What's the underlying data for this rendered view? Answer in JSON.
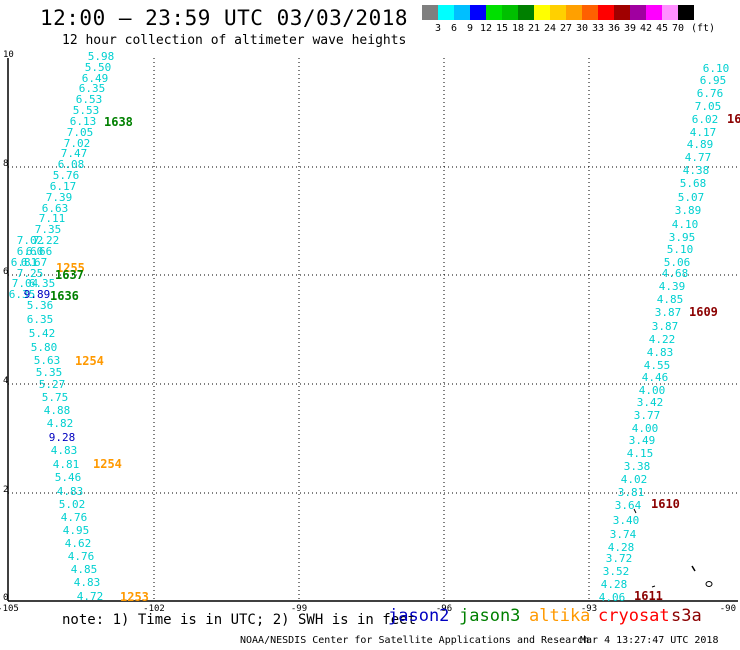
{
  "header": {
    "title": "12:00 – 23:59 UTC 03/03/2018",
    "subtitle": "12 hour collection of altimeter wave heights"
  },
  "scale": {
    "unit": "(ft)",
    "labels": [
      "3",
      "6",
      "9",
      "12",
      "15",
      "18",
      "21",
      "24",
      "27",
      "30",
      "33",
      "36",
      "39",
      "42",
      "45",
      "70"
    ],
    "colors": [
      "#7f7f7f",
      "#00ffff",
      "#00bfff",
      "#0000ff",
      "#00e000",
      "#00c000",
      "#008000",
      "#ffff00",
      "#ffd000",
      "#ffa000",
      "#ff6000",
      "#ff0000",
      "#a00000",
      "#a000a0",
      "#ff00ff",
      "#ff90ff",
      "#000000"
    ]
  },
  "axes": {
    "x_ticks": [
      "-105",
      "-102",
      "-99",
      "-96",
      "-93",
      "-90"
    ],
    "y_ticks": [
      "0",
      "2",
      "4",
      "6",
      "8",
      "10"
    ]
  },
  "colors": {
    "jason2": "#0000c0",
    "jason3": "#008000",
    "altika": "#ff9900",
    "cryosat": "#ff0000",
    "s3a": "#8b0000",
    "swh": "#00d0d0"
  },
  "tracks": {
    "west": [
      {
        "v": "5.98",
        "c": "swh"
      },
      {
        "v": "5.50",
        "c": "swh"
      },
      {
        "v": "6.49",
        "c": "swh"
      },
      {
        "v": "6.35",
        "c": "swh"
      },
      {
        "v": "6.53",
        "c": "swh"
      },
      {
        "v": "5.53",
        "c": "swh"
      },
      {
        "v": "6.13",
        "c": "swh"
      },
      {
        "v": "7.05",
        "c": "swh"
      },
      {
        "v": "7.02",
        "c": "swh"
      },
      {
        "v": "7.47",
        "c": "swh"
      },
      {
        "v": "6.08",
        "c": "swh"
      },
      {
        "v": "5.76",
        "c": "swh"
      },
      {
        "v": "6.17",
        "c": "swh"
      },
      {
        "v": "7.39",
        "c": "swh"
      },
      {
        "v": "6.63",
        "c": "swh"
      },
      {
        "v": "7.11",
        "c": "swh"
      },
      {
        "v": "7.35",
        "c": "swh"
      },
      {
        "v": "7.02",
        "c": "swh"
      },
      {
        "v": "7.22",
        "c": "swh"
      },
      {
        "v": "6.66",
        "c": "swh"
      },
      {
        "v": "6.60",
        "c": "swh"
      },
      {
        "v": "6.67",
        "c": "swh"
      },
      {
        "v": "6.81",
        "c": "swh"
      },
      {
        "v": "7.25",
        "c": "swh"
      },
      {
        "v": "7.04",
        "c": "swh"
      },
      {
        "v": "6.35",
        "c": "swh"
      },
      {
        "v": "6.35",
        "c": "swh"
      },
      {
        "v": "9.89",
        "c": "jason2"
      },
      {
        "v": "5.36",
        "c": "swh"
      },
      {
        "v": "6.35",
        "c": "swh"
      },
      {
        "v": "5.42",
        "c": "swh"
      },
      {
        "v": "5.80",
        "c": "swh"
      },
      {
        "v": "5.63",
        "c": "swh"
      },
      {
        "v": "5.35",
        "c": "swh"
      },
      {
        "v": "5.27",
        "c": "swh"
      },
      {
        "v": "5.75",
        "c": "swh"
      },
      {
        "v": "4.88",
        "c": "swh"
      },
      {
        "v": "4.82",
        "c": "swh"
      },
      {
        "v": "9.28",
        "c": "jason2"
      },
      {
        "v": "4.83",
        "c": "swh"
      },
      {
        "v": "4.81",
        "c": "swh"
      },
      {
        "v": "5.46",
        "c": "swh"
      },
      {
        "v": "4.83",
        "c": "swh"
      },
      {
        "v": "5.02",
        "c": "swh"
      },
      {
        "v": "4.76",
        "c": "swh"
      },
      {
        "v": "4.95",
        "c": "swh"
      },
      {
        "v": "4.62",
        "c": "swh"
      },
      {
        "v": "4.76",
        "c": "swh"
      },
      {
        "v": "4.85",
        "c": "swh"
      },
      {
        "v": "4.83",
        "c": "swh"
      },
      {
        "v": "4.72",
        "c": "swh"
      }
    ],
    "east": [
      {
        "v": "6.10",
        "c": "swh"
      },
      {
        "v": "6.95",
        "c": "swh"
      },
      {
        "v": "6.76",
        "c": "swh"
      },
      {
        "v": "7.05",
        "c": "swh"
      },
      {
        "v": "6.02",
        "c": "swh"
      },
      {
        "v": "4.17",
        "c": "swh"
      },
      {
        "v": "4.89",
        "c": "swh"
      },
      {
        "v": "4.77",
        "c": "swh"
      },
      {
        "v": "4.38",
        "c": "swh"
      },
      {
        "v": "5.68",
        "c": "swh"
      },
      {
        "v": "5.07",
        "c": "swh"
      },
      {
        "v": "3.89",
        "c": "swh"
      },
      {
        "v": "4.10",
        "c": "swh"
      },
      {
        "v": "3.95",
        "c": "swh"
      },
      {
        "v": "5.10",
        "c": "swh"
      },
      {
        "v": "5.06",
        "c": "swh"
      },
      {
        "v": "4.68",
        "c": "swh"
      },
      {
        "v": "4.39",
        "c": "swh"
      },
      {
        "v": "4.85",
        "c": "swh"
      },
      {
        "v": "3.87",
        "c": "swh"
      },
      {
        "v": "3.87",
        "c": "swh"
      },
      {
        "v": "4.22",
        "c": "swh"
      },
      {
        "v": "4.83",
        "c": "swh"
      },
      {
        "v": "4.55",
        "c": "swh"
      },
      {
        "v": "4.46",
        "c": "swh"
      },
      {
        "v": "4.00",
        "c": "swh"
      },
      {
        "v": "3.42",
        "c": "swh"
      },
      {
        "v": "3.77",
        "c": "swh"
      },
      {
        "v": "4.00",
        "c": "swh"
      },
      {
        "v": "3.49",
        "c": "swh"
      },
      {
        "v": "4.15",
        "c": "swh"
      },
      {
        "v": "3.38",
        "c": "swh"
      },
      {
        "v": "4.02",
        "c": "swh"
      },
      {
        "v": "3.81",
        "c": "swh"
      },
      {
        "v": "3.64",
        "c": "swh"
      },
      {
        "v": "3.40",
        "c": "swh"
      },
      {
        "v": "3.74",
        "c": "swh"
      },
      {
        "v": "4.28",
        "c": "swh"
      },
      {
        "v": "3.72",
        "c": "swh"
      },
      {
        "v": "3.52",
        "c": "swh"
      },
      {
        "v": "4.28",
        "c": "swh"
      },
      {
        "v": "4.06",
        "c": "swh"
      }
    ],
    "times": [
      {
        "v": "1638",
        "c": "jason3"
      },
      {
        "v": "1255",
        "c": "altika"
      },
      {
        "v": "1637",
        "c": "jason3"
      },
      {
        "v": "1636",
        "c": "jason3"
      },
      {
        "v": "1254",
        "c": "altika"
      },
      {
        "v": "1254",
        "c": "altika"
      },
      {
        "v": "1253",
        "c": "altika"
      },
      {
        "v": "1609",
        "c": "s3a"
      },
      {
        "v": "1610",
        "c": "s3a"
      },
      {
        "v": "1611",
        "c": "s3a"
      },
      {
        "v": "16",
        "c": "s3a"
      }
    ]
  },
  "footer": {
    "note": "note: 1) Time is in UTC; 2) SWH is in feet",
    "legend": [
      {
        "label": "jason2",
        "c": "jason2"
      },
      {
        "label": "jason3",
        "c": "jason3"
      },
      {
        "label": "altika",
        "c": "altika"
      },
      {
        "label": "cryosat",
        "c": "cryosat"
      },
      {
        "label": "s3a",
        "c": "s3a"
      }
    ],
    "credit": "NOAA/NESDIS Center for Satellite Applications and Research",
    "timestamp": "Mar  4 13:27:47 UTC 2018"
  }
}
